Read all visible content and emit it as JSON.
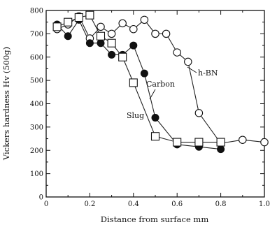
{
  "chart_data": {
    "type": "line",
    "xlabel": "Distance from surface mm",
    "ylabel": "Vickers hardness Hv (500g)",
    "xlim": [
      0,
      1.0
    ],
    "ylim": [
      0,
      800
    ],
    "xticks": [
      0,
      0.2,
      0.4,
      0.6,
      0.8,
      1.0
    ],
    "xtick_labels": [
      "0",
      "0.2",
      "0.4",
      "0.6",
      "0.8",
      "1.0"
    ],
    "yticks": [
      0,
      100,
      200,
      300,
      400,
      500,
      600,
      700,
      800
    ],
    "ytick_labels": [
      "0",
      "100",
      "200",
      "300",
      "400",
      "500",
      "600",
      "700",
      "800"
    ],
    "grid": false,
    "legend": "none",
    "series": [
      {
        "name": "h-BN",
        "marker": "open-circle",
        "x": [
          0.05,
          0.1,
          0.15,
          0.2,
          0.25,
          0.3,
          0.35,
          0.4,
          0.45,
          0.5,
          0.55,
          0.6,
          0.65,
          0.7,
          0.8,
          0.9,
          1.0
        ],
        "y": [
          720,
          740,
          775,
          680,
          730,
          700,
          745,
          720,
          760,
          700,
          700,
          620,
          580,
          360,
          230,
          245,
          235
        ]
      },
      {
        "name": "Carbon",
        "marker": "filled-circle",
        "x": [
          0.05,
          0.1,
          0.15,
          0.2,
          0.25,
          0.3,
          0.35,
          0.4,
          0.45,
          0.5,
          0.6,
          0.7,
          0.8
        ],
        "y": [
          740,
          690,
          760,
          660,
          660,
          610,
          610,
          650,
          530,
          340,
          225,
          215,
          205
        ]
      },
      {
        "name": "Slug",
        "marker": "open-square",
        "x": [
          0.05,
          0.1,
          0.15,
          0.2,
          0.25,
          0.3,
          0.35,
          0.4,
          0.5,
          0.6,
          0.7,
          0.8
        ],
        "y": [
          730,
          750,
          770,
          780,
          690,
          660,
          600,
          490,
          260,
          235,
          235,
          235
        ]
      }
    ],
    "annotations": [
      {
        "text": "h-BN",
        "series": "h-BN"
      },
      {
        "text": "Carbon",
        "series": "Carbon"
      },
      {
        "text": "Slug",
        "series": "Slug"
      }
    ]
  }
}
